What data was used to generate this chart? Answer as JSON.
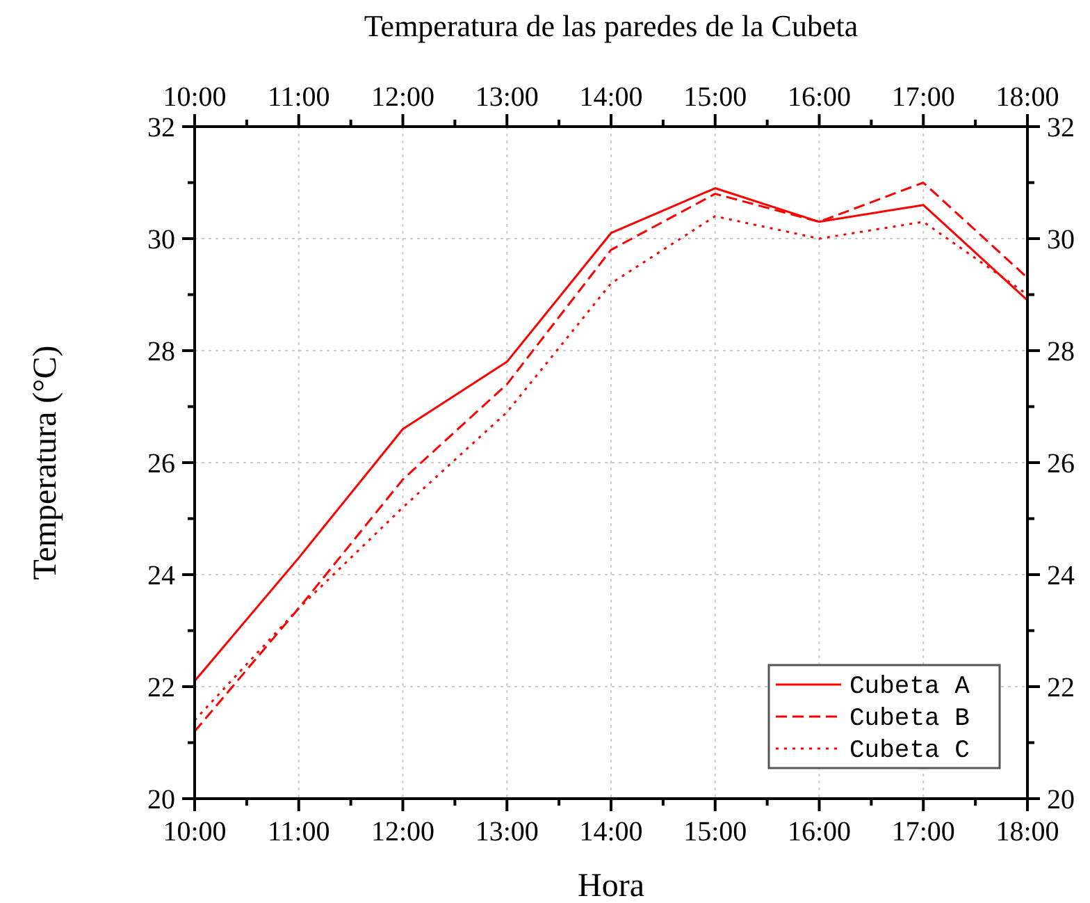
{
  "chart_data": {
    "type": "line",
    "title": "Temperatura de las paredes de la Cubeta",
    "xlabel": "Hora",
    "ylabel": "Temperatura (°C)",
    "x": [
      10,
      11,
      12,
      13,
      14,
      15,
      16,
      17,
      18
    ],
    "series": [
      {
        "name": "Cubeta A",
        "color": "#ff0000",
        "line_style": "solid",
        "values": [
          22.1,
          24.3,
          26.6,
          27.8,
          30.1,
          30.9,
          30.3,
          30.6,
          28.9
        ]
      },
      {
        "name": "Cubeta B",
        "color": "#ff0000",
        "line_style": "dashed",
        "values": [
          21.2,
          23.4,
          25.7,
          27.4,
          29.8,
          30.8,
          30.3,
          31.0,
          29.3
        ]
      },
      {
        "name": "Cubeta C",
        "color": "#ff0000",
        "line_style": "dotted",
        "values": [
          21.4,
          23.4,
          25.2,
          26.9,
          29.2,
          30.4,
          30.0,
          30.3,
          29.0
        ]
      }
    ],
    "xlim": [
      10,
      18
    ],
    "xticks": [
      {
        "value": 10,
        "label": "10:00"
      },
      {
        "value": 10.5,
        "label": null
      },
      {
        "value": 11,
        "label": "11:00"
      },
      {
        "value": 11.5,
        "label": null
      },
      {
        "value": 12,
        "label": "12:00"
      },
      {
        "value": 12.5,
        "label": null
      },
      {
        "value": 13,
        "label": "13:00"
      },
      {
        "value": 13.5,
        "label": null
      },
      {
        "value": 14,
        "label": "14:00"
      },
      {
        "value": 14.5,
        "label": null
      },
      {
        "value": 15,
        "label": "15:00"
      },
      {
        "value": 15.5,
        "label": null
      },
      {
        "value": 16,
        "label": "16:00"
      },
      {
        "value": 16.5,
        "label": null
      },
      {
        "value": 17,
        "label": "17:00"
      },
      {
        "value": 17.5,
        "label": null
      },
      {
        "value": 18,
        "label": "18:00"
      }
    ],
    "x2lim": [
      10,
      18
    ],
    "x2ticks": [
      {
        "value": 10,
        "label": "10:00"
      },
      {
        "value": 10.5,
        "label": null
      },
      {
        "value": 11,
        "label": "11:00"
      },
      {
        "value": 11.5,
        "label": null
      },
      {
        "value": 12,
        "label": "12:00"
      },
      {
        "value": 12.5,
        "label": null
      },
      {
        "value": 13,
        "label": "13:00"
      },
      {
        "value": 13.5,
        "label": null
      },
      {
        "value": 14,
        "label": "14:00"
      },
      {
        "value": 14.5,
        "label": null
      },
      {
        "value": 15,
        "label": "15:00"
      },
      {
        "value": 15.5,
        "label": null
      },
      {
        "value": 16,
        "label": "16:00"
      },
      {
        "value": 16.5,
        "label": null
      },
      {
        "value": 17,
        "label": "17:00"
      },
      {
        "value": 17.5,
        "label": null
      },
      {
        "value": 18,
        "label": "18:00"
      }
    ],
    "ylim": [
      20,
      32
    ],
    "yticks": [
      20,
      {
        "value": 21,
        "label": null
      },
      22,
      {
        "value": 23,
        "label": null
      },
      24,
      {
        "value": 25,
        "label": null
      },
      26,
      {
        "value": 27,
        "label": null
      },
      28,
      {
        "value": 29,
        "label": null
      },
      30,
      {
        "value": 31,
        "label": null
      },
      32
    ],
    "y2lim": [
      20,
      32
    ],
    "y2ticks": [
      20,
      {
        "value": 21,
        "label": null
      },
      22,
      {
        "value": 23,
        "label": null
      },
      24,
      {
        "value": 25,
        "label": null
      },
      26,
      {
        "value": 27,
        "label": null
      },
      28,
      {
        "value": 29,
        "label": null
      },
      30,
      {
        "value": 31,
        "label": null
      },
      32
    ],
    "grid": true,
    "legend": "bottom right",
    "marker": "none"
  }
}
